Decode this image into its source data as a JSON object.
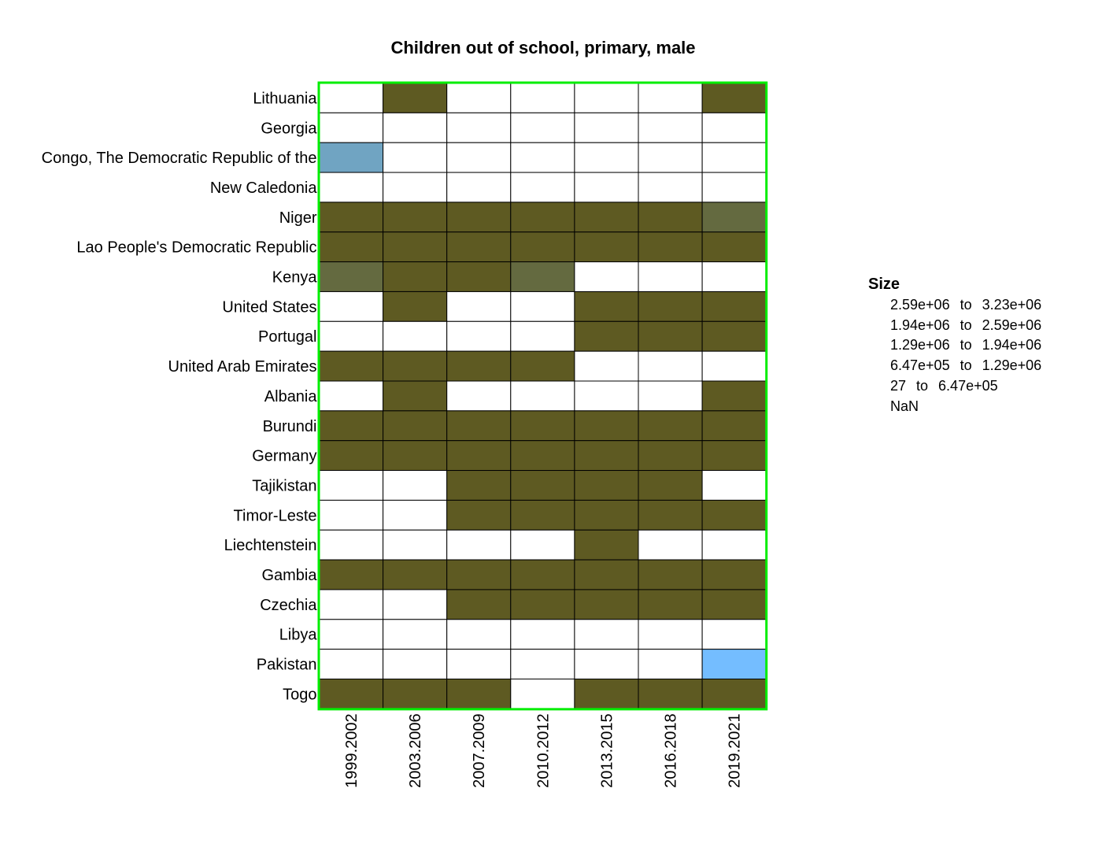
{
  "chart_data": {
    "type": "heatmap",
    "title": "Children out of school, primary, male",
    "rows": [
      "Lithuania",
      "Georgia",
      "Congo, The Democratic Republic of the",
      "New Caledonia",
      "Niger",
      "Lao People's Democratic Republic",
      "Kenya",
      "United States",
      "Portugal",
      "United Arab Emirates",
      "Albania",
      "Burundi",
      "Germany",
      "Tajikistan",
      "Timor-Leste",
      "Liechtenstein",
      "Gambia",
      "Czechia",
      "Libya",
      "Pakistan",
      "Togo"
    ],
    "columns": [
      "1999.2002",
      "2003.2006",
      "2007.2009",
      "2010.2012",
      "2013.2015",
      "2016.2018",
      "2019.2021"
    ],
    "values": [
      [
        5,
        1,
        5,
        5,
        5,
        5,
        1
      ],
      [
        5,
        5,
        5,
        5,
        5,
        5,
        5
      ],
      [
        3,
        5,
        5,
        5,
        5,
        5,
        5
      ],
      [
        5,
        5,
        5,
        5,
        5,
        5,
        5
      ],
      [
        1,
        1,
        1,
        1,
        1,
        1,
        2
      ],
      [
        1,
        1,
        1,
        1,
        1,
        1,
        1
      ],
      [
        2,
        1,
        1,
        2,
        5,
        5,
        5
      ],
      [
        5,
        1,
        5,
        5,
        1,
        1,
        1
      ],
      [
        5,
        5,
        5,
        5,
        1,
        1,
        1
      ],
      [
        1,
        1,
        1,
        1,
        5,
        5,
        5
      ],
      [
        5,
        1,
        5,
        5,
        5,
        5,
        1
      ],
      [
        1,
        1,
        1,
        1,
        1,
        1,
        1
      ],
      [
        1,
        1,
        1,
        1,
        1,
        1,
        1
      ],
      [
        5,
        5,
        1,
        1,
        1,
        1,
        5
      ],
      [
        5,
        5,
        1,
        1,
        1,
        1,
        1
      ],
      [
        5,
        5,
        5,
        5,
        1,
        5,
        5
      ],
      [
        1,
        1,
        1,
        1,
        1,
        1,
        1
      ],
      [
        5,
        5,
        1,
        1,
        1,
        1,
        1
      ],
      [
        5,
        5,
        5,
        5,
        5,
        5,
        5
      ],
      [
        5,
        5,
        5,
        5,
        5,
        5,
        4
      ],
      [
        1,
        1,
        1,
        5,
        1,
        1,
        1
      ]
    ],
    "value_encoding": "index into legend.bins (0 = highest bin ... 4 = lowest bin, 5 = NaN)",
    "legend": {
      "title": "Size",
      "bins": [
        {
          "from": "2.59e+06",
          "to": "3.23e+06",
          "color": "#5c4a00"
        },
        {
          "from": "1.94e+06",
          "to": "2.59e+06",
          "color": "#5e5a22"
        },
        {
          "from": "1.29e+06",
          "to": "1.94e+06",
          "color": "#646a40"
        },
        {
          "from": "6.47e+05",
          "to": "1.29e+06",
          "color": "#70a4c2"
        },
        {
          "from": "27",
          "to": "6.47e+05",
          "color": "#74bdff"
        }
      ],
      "nan_label": "NaN",
      "nan_color": "#ffffff",
      "connector": "to"
    },
    "border_color": "#00ee00",
    "cell_line_color": "#000000"
  }
}
